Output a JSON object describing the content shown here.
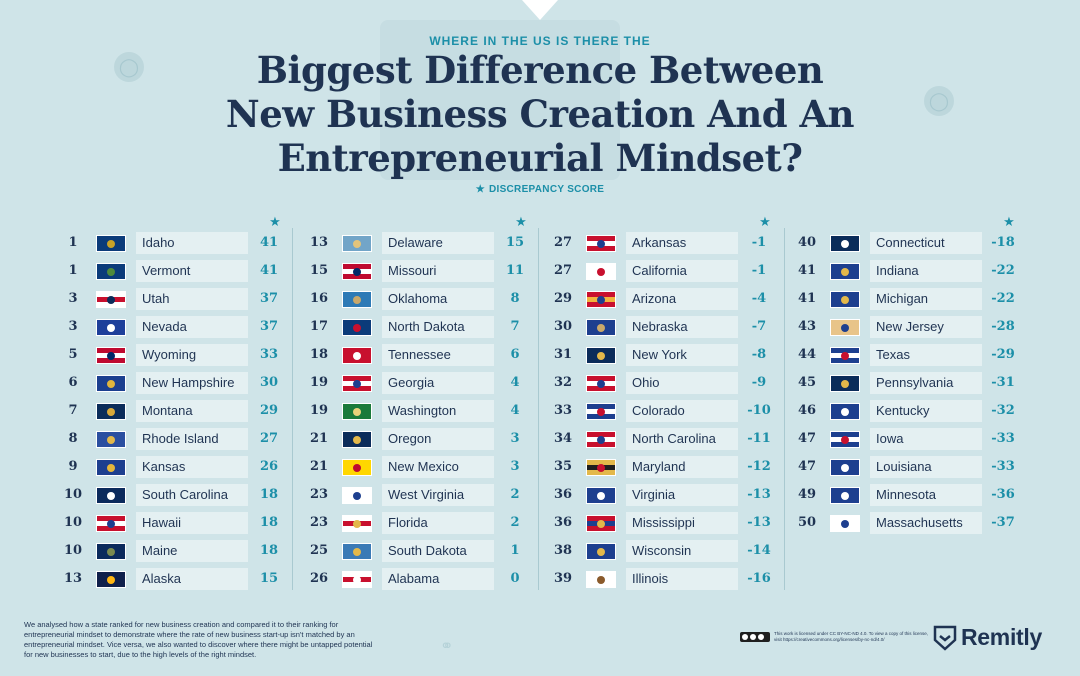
{
  "header": {
    "kicker": "WHERE IN THE US IS THERE THE",
    "title_lines": [
      "Biggest Difference Between",
      "New Business Creation And An",
      "Entrepreneurial Mindset?"
    ],
    "legend_star": "★",
    "legend_label": "DISCREPANCY SCORE"
  },
  "column_star": "★",
  "columns": [
    [
      {
        "rank": "1",
        "state": "Idaho",
        "score": "41",
        "flag": [
          "#0b3b7a",
          "#0b3b7a",
          "#c9a227"
        ]
      },
      {
        "rank": "1",
        "state": "Vermont",
        "score": "41",
        "flag": [
          "#0b3b7a",
          "#0b3b7a",
          "#4f8a3b"
        ]
      },
      {
        "rank": "3",
        "state": "Utah",
        "score": "37",
        "flag": [
          "#ffffff",
          "#c8102e",
          "#0b2c5a"
        ]
      },
      {
        "rank": "3",
        "state": "Nevada",
        "score": "37",
        "flag": [
          "#1d3f9a",
          "#1d3f9a",
          "#ffffff"
        ]
      },
      {
        "rank": "5",
        "state": "Wyoming",
        "score": "33",
        "flag": [
          "#bf0a30",
          "#ffffff",
          "#002868"
        ]
      },
      {
        "rank": "6",
        "state": "New Hampshire",
        "score": "30",
        "flag": [
          "#1b3f8f",
          "#1b3f8f",
          "#e0b53c"
        ]
      },
      {
        "rank": "7",
        "state": "Montana",
        "score": "29",
        "flag": [
          "#0b2c5a",
          "#0b2c5a",
          "#d9a93a"
        ]
      },
      {
        "rank": "8",
        "state": "Rhode Island",
        "score": "27",
        "flag": [
          "#2b4fa0",
          "#2b4fa0",
          "#e3b84a"
        ]
      },
      {
        "rank": "9",
        "state": "Kansas",
        "score": "26",
        "flag": [
          "#1d3f8f",
          "#1d3f8f",
          "#e5b63a"
        ]
      },
      {
        "rank": "10",
        "state": "South Carolina",
        "score": "18",
        "flag": [
          "#0b2a5c",
          "#0b2a5c",
          "#ffffff"
        ]
      },
      {
        "rank": "10",
        "state": "Hawaii",
        "score": "18",
        "flag": [
          "#c8102e",
          "#ffffff",
          "#1d3f8f"
        ]
      },
      {
        "rank": "10",
        "state": "Maine",
        "score": "18",
        "flag": [
          "#0b2a5c",
          "#0b2a5c",
          "#7a8a4f"
        ]
      },
      {
        "rank": "13",
        "state": "Alaska",
        "score": "15",
        "flag": [
          "#0f204b",
          "#0f204b",
          "#ffb612"
        ]
      }
    ],
    [
      {
        "rank": "13",
        "state": "Delaware",
        "score": "15",
        "flag": [
          "#72a5c8",
          "#72a5c8",
          "#e4c47a"
        ]
      },
      {
        "rank": "15",
        "state": "Missouri",
        "score": "11",
        "flag": [
          "#bf0a30",
          "#ffffff",
          "#002868"
        ]
      },
      {
        "rank": "16",
        "state": "Oklahoma",
        "score": "8",
        "flag": [
          "#2d7ab6",
          "#2d7ab6",
          "#c9a86a"
        ]
      },
      {
        "rank": "17",
        "state": "North Dakota",
        "score": "7",
        "flag": [
          "#0b3b7a",
          "#0b3b7a",
          "#c8102e"
        ]
      },
      {
        "rank": "18",
        "state": "Tennessee",
        "score": "6",
        "flag": [
          "#c8102e",
          "#c8102e",
          "#ffffff"
        ]
      },
      {
        "rank": "19",
        "state": "Georgia",
        "score": "4",
        "flag": [
          "#c8102e",
          "#ffffff",
          "#1d3f8f"
        ]
      },
      {
        "rank": "19",
        "state": "Washington",
        "score": "4",
        "flag": [
          "#1a7a3a",
          "#1a7a3a",
          "#e9d27a"
        ]
      },
      {
        "rank": "21",
        "state": "Oregon",
        "score": "3",
        "flag": [
          "#0b2c5a",
          "#0b2c5a",
          "#e3b84a"
        ]
      },
      {
        "rank": "21",
        "state": "New Mexico",
        "score": "3",
        "flag": [
          "#ffd700",
          "#ffd700",
          "#bf0a30"
        ]
      },
      {
        "rank": "23",
        "state": "West Virginia",
        "score": "2",
        "flag": [
          "#ffffff",
          "#ffffff",
          "#1d3f8f"
        ]
      },
      {
        "rank": "23",
        "state": "Florida",
        "score": "2",
        "flag": [
          "#ffffff",
          "#c8102e",
          "#e3b84a"
        ]
      },
      {
        "rank": "25",
        "state": "South Dakota",
        "score": "1",
        "flag": [
          "#3a7ab6",
          "#3a7ab6",
          "#e3b84a"
        ]
      },
      {
        "rank": "26",
        "state": "Alabama",
        "score": "0",
        "flag": [
          "#ffffff",
          "#c8102e",
          "#ffffff"
        ]
      }
    ],
    [
      {
        "rank": "27",
        "state": "Arkansas",
        "score": "-1",
        "flag": [
          "#c8102e",
          "#ffffff",
          "#1d3f8f"
        ]
      },
      {
        "rank": "27",
        "state": "California",
        "score": "-1",
        "flag": [
          "#ffffff",
          "#ffffff",
          "#c8102e"
        ]
      },
      {
        "rank": "29",
        "state": "Arizona",
        "score": "-4",
        "flag": [
          "#c8102e",
          "#f2b33d",
          "#1d3f8f"
        ]
      },
      {
        "rank": "30",
        "state": "Nebraska",
        "score": "-7",
        "flag": [
          "#1d3f8f",
          "#1d3f8f",
          "#c9a86a"
        ]
      },
      {
        "rank": "31",
        "state": "New York",
        "score": "-8",
        "flag": [
          "#0b2c5a",
          "#0b2c5a",
          "#e3b84a"
        ]
      },
      {
        "rank": "32",
        "state": "Ohio",
        "score": "-9",
        "flag": [
          "#c8102e",
          "#ffffff",
          "#1d3f8f"
        ]
      },
      {
        "rank": "33",
        "state": "Colorado",
        "score": "-10",
        "flag": [
          "#1d3f8f",
          "#ffffff",
          "#c8102e"
        ]
      },
      {
        "rank": "34",
        "state": "North Carolina",
        "score": "-11",
        "flag": [
          "#c8102e",
          "#ffffff",
          "#1d3f8f"
        ]
      },
      {
        "rank": "35",
        "state": "Maryland",
        "score": "-12",
        "flag": [
          "#e3b84a",
          "#1f1f1f",
          "#c8102e"
        ]
      },
      {
        "rank": "36",
        "state": "Virginia",
        "score": "-13",
        "flag": [
          "#1d3f8f",
          "#1d3f8f",
          "#ffffff"
        ]
      },
      {
        "rank": "36",
        "state": "Mississippi",
        "score": "-13",
        "flag": [
          "#c8102e",
          "#1d3f8f",
          "#e3b84a"
        ]
      },
      {
        "rank": "38",
        "state": "Wisconsin",
        "score": "-14",
        "flag": [
          "#1d3f8f",
          "#1d3f8f",
          "#e3b84a"
        ]
      },
      {
        "rank": "39",
        "state": "Illinois",
        "score": "-16",
        "flag": [
          "#ffffff",
          "#ffffff",
          "#8a5a2b"
        ]
      }
    ],
    [
      {
        "rank": "40",
        "state": "Connecticut",
        "score": "-18",
        "flag": [
          "#0b2c5a",
          "#0b2c5a",
          "#ffffff"
        ]
      },
      {
        "rank": "41",
        "state": "Indiana",
        "score": "-22",
        "flag": [
          "#1d3f8f",
          "#1d3f8f",
          "#e3b84a"
        ]
      },
      {
        "rank": "41",
        "state": "Michigan",
        "score": "-22",
        "flag": [
          "#1d3f8f",
          "#1d3f8f",
          "#e3b84a"
        ]
      },
      {
        "rank": "43",
        "state": "New Jersey",
        "score": "-28",
        "flag": [
          "#e8c489",
          "#e8c489",
          "#1d3f8f"
        ]
      },
      {
        "rank": "44",
        "state": "Texas",
        "score": "-29",
        "flag": [
          "#1d3f8f",
          "#ffffff",
          "#c8102e"
        ]
      },
      {
        "rank": "45",
        "state": "Pennsylvania",
        "score": "-31",
        "flag": [
          "#0b2c5a",
          "#0b2c5a",
          "#e3b84a"
        ]
      },
      {
        "rank": "46",
        "state": "Kentucky",
        "score": "-32",
        "flag": [
          "#1d3f8f",
          "#1d3f8f",
          "#ffffff"
        ]
      },
      {
        "rank": "47",
        "state": "Iowa",
        "score": "-33",
        "flag": [
          "#1d3f8f",
          "#ffffff",
          "#c8102e"
        ]
      },
      {
        "rank": "47",
        "state": "Louisiana",
        "score": "-33",
        "flag": [
          "#1d3f8f",
          "#1d3f8f",
          "#ffffff"
        ]
      },
      {
        "rank": "49",
        "state": "Minnesota",
        "score": "-36",
        "flag": [
          "#1d3f8f",
          "#1d3f8f",
          "#ffffff"
        ]
      },
      {
        "rank": "50",
        "state": "Massachusetts",
        "score": "-37",
        "flag": [
          "#ffffff",
          "#ffffff",
          "#1d3f8f"
        ]
      }
    ]
  ],
  "footnote": "We analysed how a state ranked for new business creation and compared it to their ranking for entrepreneurial mindset to demonstrate where the rate of new business start-up isn't matched by an entrepreneurial mindset. Vice versa, we also wanted to discover where there might be untapped potential for new businesses to start, due to the high levels of the right mindset.",
  "license_text": "This work is licensed under CC BY-NC-ND 4.0. To view a copy of this license, visit https://creativecommons.org/licenses/by-nc-nd/4.0/",
  "brand": "Remitly",
  "colors": {
    "background": "#cfe4e8",
    "navy": "#1f3352",
    "teal": "#1c8fa8",
    "row_bg": "#e4f0f2"
  }
}
